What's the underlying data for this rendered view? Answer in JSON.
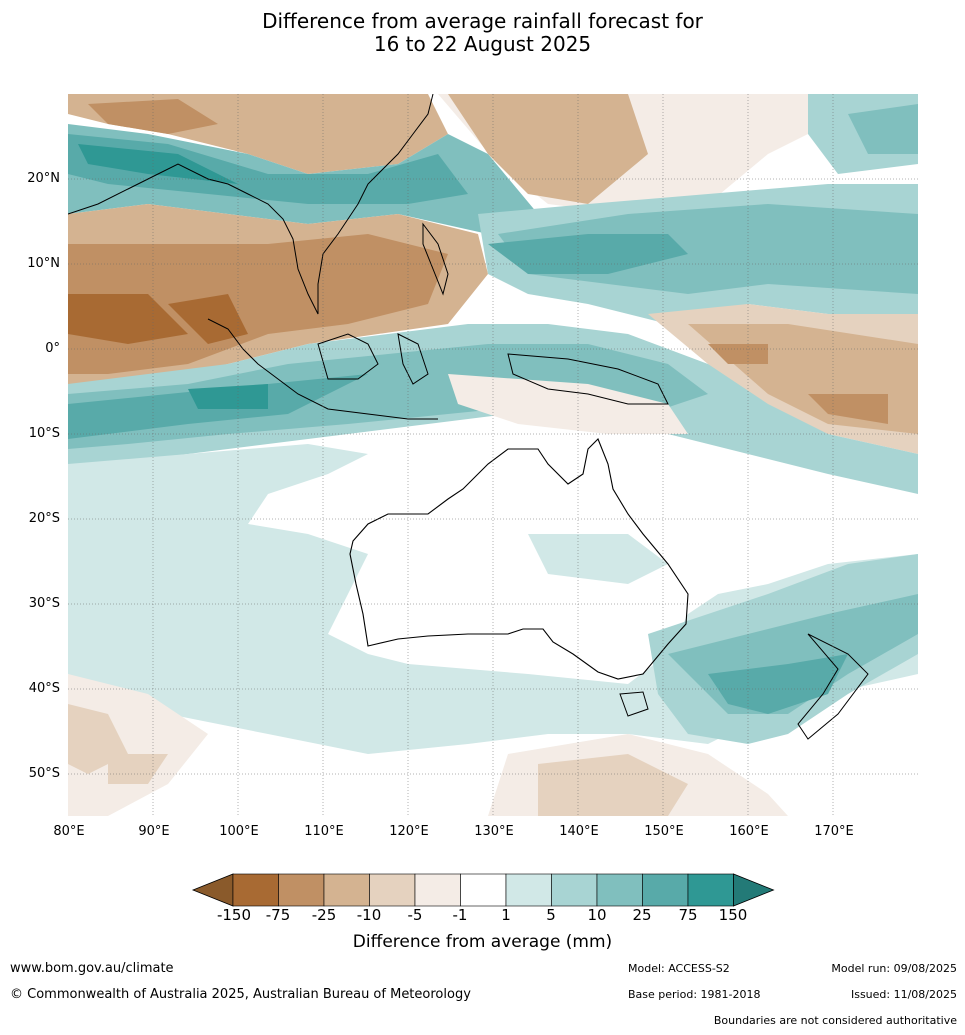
{
  "title": {
    "line1": "Difference from average rainfall forecast for",
    "line2": "16 to 22 August 2025"
  },
  "map": {
    "lon_range": [
      80,
      180
    ],
    "lat_range": [
      -55,
      30
    ],
    "lat_ticks": [
      "20°N",
      "10°N",
      "0°",
      "10°S",
      "20°S",
      "30°S",
      "40°S",
      "50°S"
    ],
    "lon_ticks": [
      "80°E",
      "90°E",
      "100°E",
      "110°E",
      "120°E",
      "130°E",
      "140°E",
      "150°E",
      "160°E",
      "170°E"
    ]
  },
  "colorbar": {
    "title": "Difference from average (mm)",
    "labels": [
      "-150",
      "-75",
      "-25",
      "-10",
      "-5",
      "-1",
      "1",
      "5",
      "10",
      "25",
      "75",
      "150"
    ],
    "colors": [
      "#a86a33",
      "#c09064",
      "#d4b391",
      "#e5d2bf",
      "#f4ece6",
      "#ffffff",
      "#d1e8e7",
      "#a8d4d3",
      "#80bfbe",
      "#58aaa9",
      "#2f9894",
      "#237a77"
    ],
    "extend_low": "#8a5a2b",
    "extend_high": "#237a77"
  },
  "footer": {
    "url": "www.bom.gov.au/climate",
    "copyright": "© Commonwealth of Australia 2025, Australian Bureau of Meteorology",
    "model": "Model: ACCESS-S2",
    "base_period": "Base period: 1981-2018",
    "model_run": "Model run: 09/08/2025",
    "issued": "Issued: 11/08/2025",
    "disclaimer": "Boundaries are not considered authoritative"
  }
}
